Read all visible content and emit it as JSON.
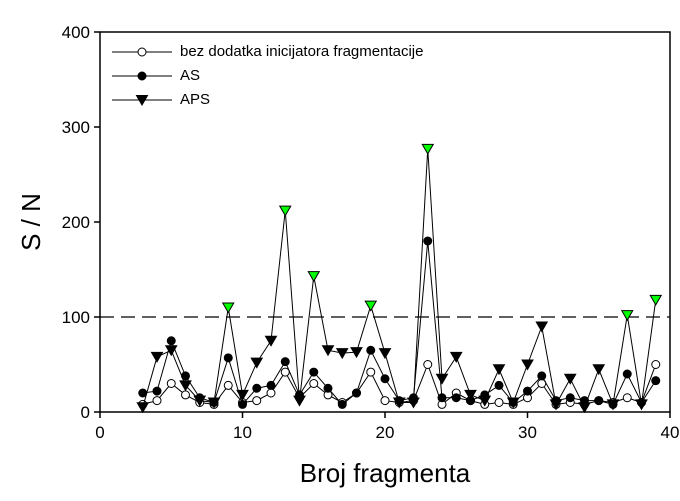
{
  "chart_data": {
    "type": "line",
    "xlabel": "Broj fragmenta",
    "ylabel": "S / N",
    "x": [
      3,
      4,
      5,
      6,
      7,
      8,
      9,
      10,
      11,
      12,
      13,
      14,
      15,
      16,
      17,
      18,
      19,
      20,
      21,
      22,
      23,
      24,
      25,
      26,
      27,
      28,
      29,
      30,
      31,
      32,
      33,
      34,
      35,
      36,
      37,
      38,
      39
    ],
    "series": [
      {
        "name": "bez dodatka inicijatora fragmentacije",
        "color": "#000000",
        "marker": "open-circle",
        "values": [
          8,
          12,
          30,
          18,
          10,
          8,
          28,
          10,
          12,
          20,
          42,
          15,
          30,
          18,
          10,
          20,
          42,
          12,
          10,
          12,
          50,
          8,
          20,
          12,
          8,
          10,
          8,
          15,
          30,
          8,
          10,
          8,
          12,
          10,
          15,
          10,
          50
        ]
      },
      {
        "name": "AS",
        "color": "#000000",
        "marker": "circle",
        "values": [
          20,
          22,
          75,
          38,
          15,
          10,
          57,
          8,
          25,
          28,
          53,
          18,
          42,
          25,
          8,
          20,
          65,
          35,
          12,
          15,
          180,
          15,
          15,
          12,
          18,
          28,
          10,
          22,
          38,
          12,
          15,
          12,
          12,
          8,
          40,
          10,
          33
        ]
      },
      {
        "name": "APS",
        "color": "#000000",
        "marker": "triangle-down",
        "highlight_color": "#00ff00",
        "values": [
          5,
          58,
          65,
          28,
          12,
          10,
          110,
          18,
          52,
          75,
          212,
          12,
          143,
          65,
          62,
          63,
          112,
          62,
          10,
          10,
          277,
          35,
          58,
          18,
          12,
          45,
          10,
          50,
          90,
          8,
          35,
          5,
          45,
          8,
          102,
          8,
          118
        ]
      }
    ],
    "threshold": 100,
    "xlim": [
      0,
      40
    ],
    "xticks": [
      0,
      10,
      20,
      30,
      40
    ],
    "ylim": [
      0,
      400
    ],
    "yticks": [
      0,
      100,
      200,
      300,
      400
    ],
    "legend": "upper left"
  }
}
